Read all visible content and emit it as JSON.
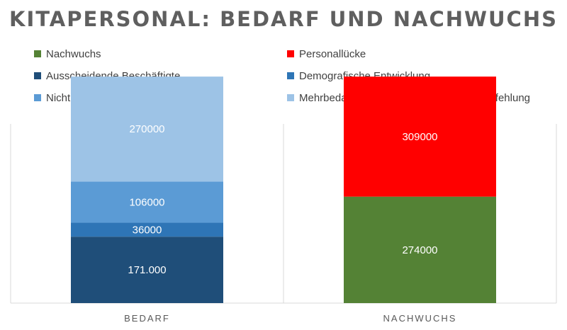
{
  "title": "KITAPERSONAL: BEDARF UND NACHWUCHS",
  "legend": [
    {
      "label": "Nachwuchs",
      "color": "#548235"
    },
    {
      "label": "Personallücke",
      "color": "#ff0000"
    },
    {
      "label": "Ausscheidende Beschäftigte",
      "color": "#1f4e79"
    },
    {
      "label": "Demografische Entwicklung",
      "color": "#2e75b6"
    },
    {
      "label": "Nicht erfüllte Elternwünsche",
      "color": "#5b9bd5"
    },
    {
      "label": "Mehrbedarf für Betreuungsschlüssel-Empfehlung",
      "color": "#9dc3e6"
    }
  ],
  "chart_data": {
    "type": "bar",
    "stacked": true,
    "title": "KITAPERSONAL: BEDARF UND NACHWUCHS",
    "categories": [
      "BEDARF",
      "NACHWUCHS"
    ],
    "series": [
      {
        "name": "Ausscheidende Beschäftigte",
        "color": "#1f4e79",
        "values": [
          171000,
          0
        ],
        "labels": [
          "171.000",
          ""
        ]
      },
      {
        "name": "Demografische Entwicklung",
        "color": "#2e75b6",
        "values": [
          36000,
          0
        ],
        "labels": [
          "36000",
          ""
        ]
      },
      {
        "name": "Nicht erfüllte Elternwünsche",
        "color": "#5b9bd5",
        "values": [
          106000,
          0
        ],
        "labels": [
          "106000",
          ""
        ]
      },
      {
        "name": "Mehrbedarf für Betreuungsschlüssel-Empfehlung",
        "color": "#9dc3e6",
        "values": [
          270000,
          0
        ],
        "labels": [
          "270000",
          ""
        ]
      },
      {
        "name": "Nachwuchs",
        "color": "#548235",
        "values": [
          0,
          274000
        ],
        "labels": [
          "",
          "274000"
        ]
      },
      {
        "name": "Personallücke",
        "color": "#ff0000",
        "values": [
          0,
          309000
        ],
        "labels": [
          "",
          "309000"
        ]
      }
    ],
    "ylim": [
      0,
      720000
    ],
    "grid": false,
    "legend_position": "top"
  }
}
